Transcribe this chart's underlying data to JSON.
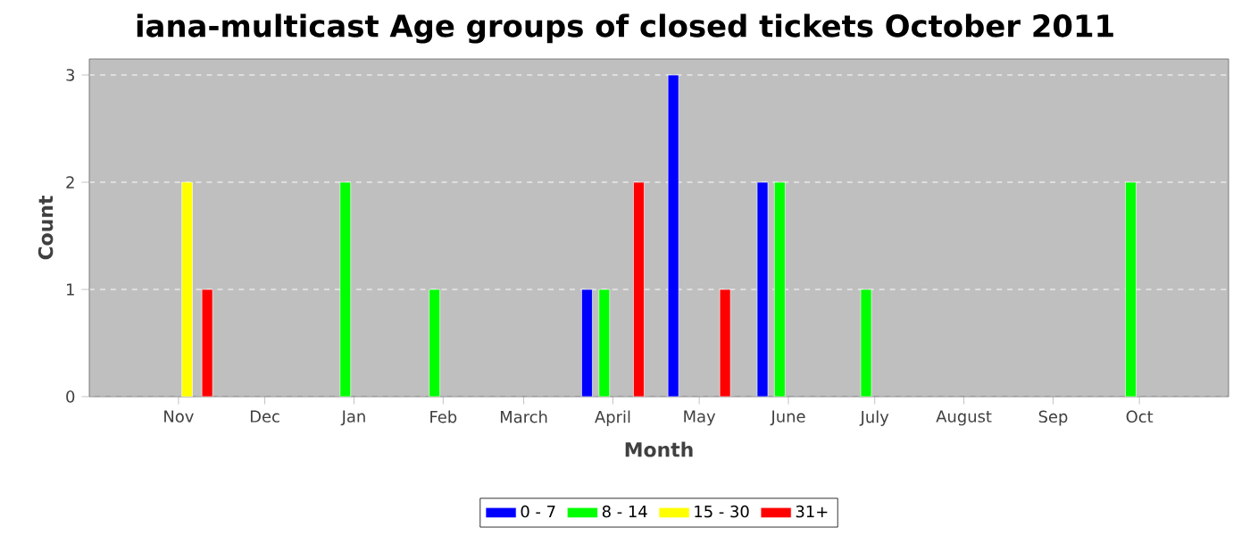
{
  "chart_data": {
    "type": "bar",
    "title": "iana-multicast Age groups of closed tickets October 2011",
    "xlabel": "Month",
    "ylabel": "Count",
    "xlim": [
      "2010-10-01",
      "2011-11-01"
    ],
    "ylim": [
      0,
      3.15
    ],
    "xticks": [
      {
        "value": "2010-11-01",
        "label": "Nov"
      },
      {
        "value": "2010-12-01",
        "label": "Dec"
      },
      {
        "value": "2011-01-01",
        "label": "Jan"
      },
      {
        "value": "2011-02-01",
        "label": "Feb"
      },
      {
        "value": "2011-03-01",
        "label": "March"
      },
      {
        "value": "2011-04-01",
        "label": "April"
      },
      {
        "value": "2011-05-01",
        "label": "May"
      },
      {
        "value": "2011-06-01",
        "label": "June"
      },
      {
        "value": "2011-07-01",
        "label": "July"
      },
      {
        "value": "2011-08-01",
        "label": "August"
      },
      {
        "value": "2011-09-01",
        "label": "Sep"
      },
      {
        "value": "2011-10-01",
        "label": "Oct"
      }
    ],
    "yticks": [
      0,
      1,
      2,
      3
    ],
    "grid": "y",
    "legend": "bottom",
    "series": [
      {
        "name": "0 - 7",
        "color": "#0000ff",
        "x": [
          "2011-03-23",
          "2011-04-22",
          "2011-05-23"
        ],
        "values": [
          1,
          3,
          2
        ]
      },
      {
        "name": "8 - 14",
        "color": "#00ff00",
        "x": [
          "2010-12-29",
          "2011-01-29",
          "2011-03-29",
          "2011-05-29",
          "2011-06-28",
          "2011-09-28"
        ],
        "values": [
          2,
          1,
          1,
          2,
          1,
          2
        ]
      },
      {
        "name": "15 - 30",
        "color": "#ffff00",
        "x": [
          "2010-11-04"
        ],
        "values": [
          2
        ]
      },
      {
        "name": "31+",
        "color": "#ff0000",
        "x": [
          "2010-11-11",
          "2011-04-10",
          "2011-05-10"
        ],
        "values": [
          1,
          2,
          1
        ]
      }
    ]
  }
}
